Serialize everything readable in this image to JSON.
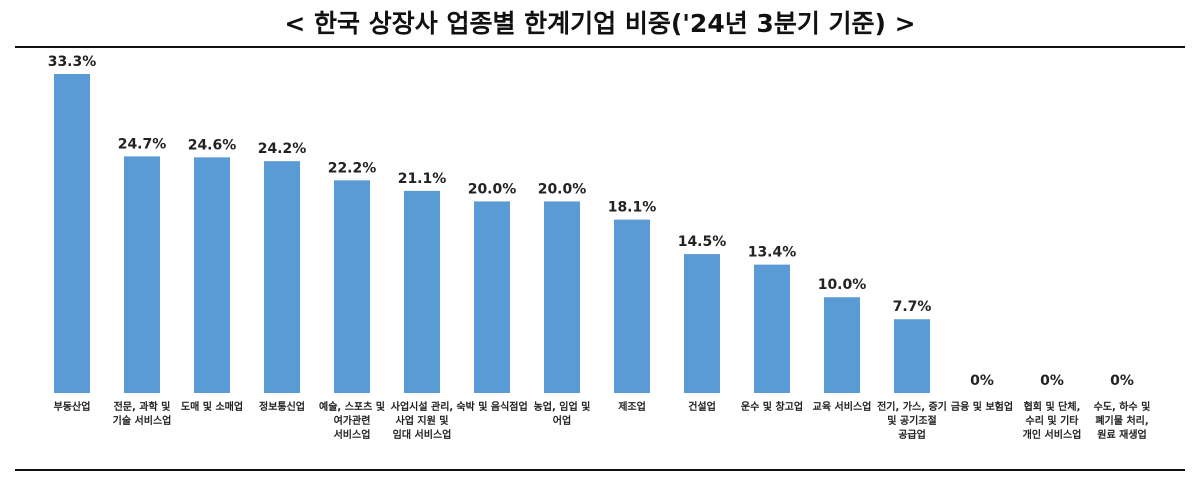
{
  "chart_data": {
    "type": "bar",
    "title": "< 한국 상장사 업종별 한계기업 비중('24년 3분기 기준) >",
    "categories": [
      "부동산업",
      "전문, 과학 및 기술 서비스업",
      "도매 및 소매업",
      "정보통신업",
      "예술, 스포츠 및 여가관련 서비스업",
      "사업시설 관리, 사업 지원 및 임대 서비스업",
      "숙박 및 음식점업",
      "농업, 임업 및 어업",
      "제조업",
      "건설업",
      "운수 및 창고업",
      "교육 서비스업",
      "전기, 가스, 증기 및 공기조절 공급업",
      "금융 및 보험업",
      "협회 및 단체, 수리 및 기타 개인 서비스업",
      "수도, 하수 및 폐기물 처리, 원료 재생업"
    ],
    "values": [
      33.3,
      24.7,
      24.6,
      24.2,
      22.2,
      21.1,
      20.0,
      20.0,
      18.1,
      14.5,
      13.4,
      10.0,
      7.7,
      0,
      0,
      0
    ],
    "value_labels": [
      "33.3%",
      "24.7%",
      "24.6%",
      "24.2%",
      "22.2%",
      "21.1%",
      "20.0%",
      "20.0%",
      "18.1%",
      "14.5%",
      "13.4%",
      "10.0%",
      "7.7%",
      "0%",
      "0%",
      "0%"
    ],
    "color": "#5b9bd5"
  }
}
